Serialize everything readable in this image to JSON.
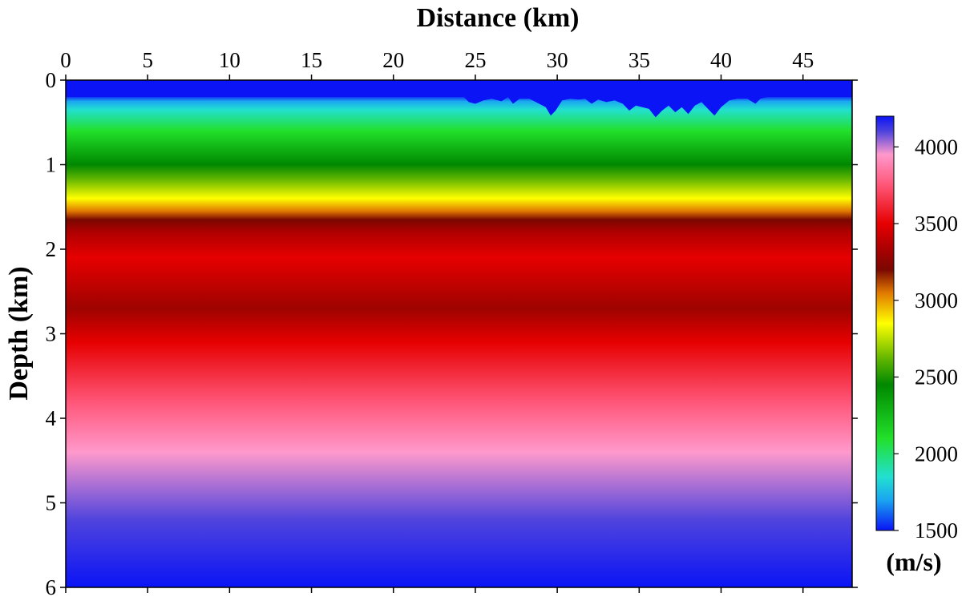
{
  "chart_data": {
    "type": "heatmap",
    "title": "",
    "xlabel": "Distance (km)",
    "ylabel": "Depth (km)",
    "xlim": [
      0,
      48
    ],
    "ylim": [
      0,
      6
    ],
    "x_axis_position": "top",
    "y_inverted": true,
    "x_ticks": [
      "0",
      "5",
      "10",
      "15",
      "20",
      "25",
      "30",
      "35",
      "40",
      "45"
    ],
    "y_ticks": [
      "0",
      "1",
      "2",
      "3",
      "4",
      "5",
      "6"
    ],
    "grid": false,
    "colorbar": {
      "unit": "(m/s)",
      "range": [
        1500,
        4200
      ],
      "ticks": [
        "1500",
        "2000",
        "2500",
        "3000",
        "3500",
        "4000"
      ],
      "placement": "right"
    },
    "colormap": [
      {
        "value": 1500,
        "color": "#0a14f5"
      },
      {
        "value": 1700,
        "color": "#1aa6f0"
      },
      {
        "value": 1850,
        "color": "#22e0d0"
      },
      {
        "value": 2100,
        "color": "#22e02a"
      },
      {
        "value": 2450,
        "color": "#008800"
      },
      {
        "value": 2600,
        "color": "#55b000"
      },
      {
        "value": 2850,
        "color": "#ffff00"
      },
      {
        "value": 3050,
        "color": "#e07800"
      },
      {
        "value": 3200,
        "color": "#7a0800"
      },
      {
        "value": 3350,
        "color": "#b00000"
      },
      {
        "value": 3500,
        "color": "#e60000"
      },
      {
        "value": 3750,
        "color": "#ff5577"
      },
      {
        "value": 3950,
        "color": "#ff99cc"
      },
      {
        "value": 4100,
        "color": "#5044dd"
      },
      {
        "value": 4200,
        "color": "#0a14f5"
      }
    ],
    "velocity_profile": [
      {
        "depth": 0.0,
        "velocity": 1500
      },
      {
        "depth": 0.18,
        "velocity": 1500
      },
      {
        "depth": 0.25,
        "velocity": 1700
      },
      {
        "depth": 0.35,
        "velocity": 1850
      },
      {
        "depth": 0.6,
        "velocity": 2100
      },
      {
        "depth": 1.0,
        "velocity": 2450
      },
      {
        "depth": 1.15,
        "velocity": 2600
      },
      {
        "depth": 1.4,
        "velocity": 2850
      },
      {
        "depth": 1.55,
        "velocity": 3050
      },
      {
        "depth": 1.65,
        "velocity": 3200
      },
      {
        "depth": 1.8,
        "velocity": 3350
      },
      {
        "depth": 2.1,
        "velocity": 3500
      },
      {
        "depth": 2.7,
        "velocity": 3300
      },
      {
        "depth": 3.1,
        "velocity": 3500
      },
      {
        "depth": 3.8,
        "velocity": 3750
      },
      {
        "depth": 4.4,
        "velocity": 3950
      },
      {
        "depth": 5.2,
        "velocity": 4100
      },
      {
        "depth": 6.0,
        "velocity": 4200
      }
    ],
    "water_bottom": {
      "velocity": 1500,
      "base_depth": 0.2,
      "points": [
        [
          24.3,
          0.2
        ],
        [
          24.6,
          0.26
        ],
        [
          25.0,
          0.28
        ],
        [
          25.5,
          0.24
        ],
        [
          26.0,
          0.22
        ],
        [
          26.6,
          0.25
        ],
        [
          27.0,
          0.2
        ],
        [
          27.3,
          0.28
        ],
        [
          27.7,
          0.22
        ],
        [
          28.3,
          0.22
        ],
        [
          28.9,
          0.28
        ],
        [
          29.3,
          0.32
        ],
        [
          29.6,
          0.42
        ],
        [
          29.9,
          0.36
        ],
        [
          30.3,
          0.24
        ],
        [
          30.8,
          0.22
        ],
        [
          31.3,
          0.23
        ],
        [
          31.7,
          0.22
        ],
        [
          32.1,
          0.28
        ],
        [
          32.5,
          0.23
        ],
        [
          33.0,
          0.26
        ],
        [
          33.5,
          0.24
        ],
        [
          34.0,
          0.28
        ],
        [
          34.4,
          0.36
        ],
        [
          34.8,
          0.3
        ],
        [
          35.2,
          0.32
        ],
        [
          35.6,
          0.34
        ],
        [
          36.0,
          0.44
        ],
        [
          36.4,
          0.36
        ],
        [
          36.8,
          0.3
        ],
        [
          37.2,
          0.38
        ],
        [
          37.6,
          0.32
        ],
        [
          38.0,
          0.4
        ],
        [
          38.4,
          0.3
        ],
        [
          38.8,
          0.26
        ],
        [
          39.2,
          0.34
        ],
        [
          39.6,
          0.42
        ],
        [
          40.0,
          0.32
        ],
        [
          40.5,
          0.24
        ],
        [
          41.0,
          0.22
        ],
        [
          41.6,
          0.22
        ],
        [
          42.1,
          0.28
        ],
        [
          42.4,
          0.22
        ],
        [
          42.8,
          0.2
        ]
      ]
    }
  }
}
